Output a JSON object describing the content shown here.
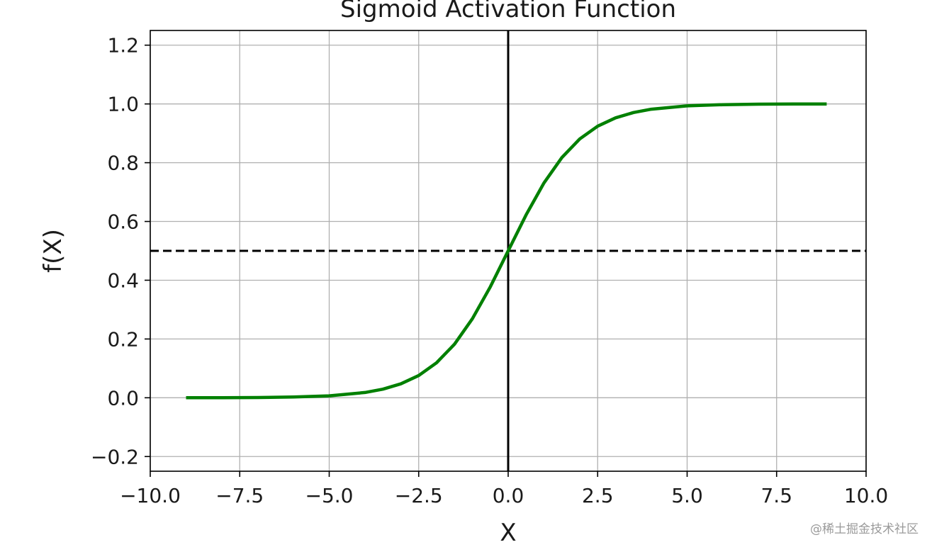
{
  "chart_data": {
    "type": "line",
    "title": "Sigmoid Activation Function",
    "xlabel": "X",
    "ylabel": "f(X)",
    "xlim": [
      -10.0,
      10.0
    ],
    "ylim": [
      -0.25,
      1.25
    ],
    "xticks": [
      -10.0,
      -7.5,
      -5.0,
      -2.5,
      0.0,
      2.5,
      5.0,
      7.5,
      10.0
    ],
    "xtick_labels": [
      "−10.0",
      "−7.5",
      "−5.0",
      "−2.5",
      "0.0",
      "2.5",
      "5.0",
      "7.5",
      "10.0"
    ],
    "yticks": [
      -0.2,
      0.0,
      0.2,
      0.4,
      0.6,
      0.8,
      1.0,
      1.2
    ],
    "ytick_labels": [
      "−0.2",
      "0.0",
      "0.2",
      "0.4",
      "0.6",
      "0.8",
      "1.0",
      "1.2"
    ],
    "grid": true,
    "series": [
      {
        "color": "#008000",
        "x": [
          -9.0,
          -8.0,
          -7.0,
          -6.0,
          -5.0,
          -4.0,
          -3.5,
          -3.0,
          -2.5,
          -2.0,
          -1.5,
          -1.0,
          -0.5,
          0.0,
          0.5,
          1.0,
          1.5,
          2.0,
          2.5,
          3.0,
          3.5,
          4.0,
          5.0,
          6.0,
          7.0,
          8.0,
          8.9
        ],
        "y": [
          0.0001,
          0.0003,
          0.0009,
          0.0025,
          0.0067,
          0.018,
          0.0293,
          0.0474,
          0.0759,
          0.1192,
          0.1824,
          0.2689,
          0.3775,
          0.5,
          0.6225,
          0.7311,
          0.8176,
          0.8808,
          0.9241,
          0.9526,
          0.9707,
          0.982,
          0.9933,
          0.9975,
          0.9991,
          0.9997,
          0.9999
        ]
      }
    ],
    "reference_lines": [
      {
        "orientation": "horizontal",
        "value": 0.5,
        "style": "dashed",
        "color": "#000000"
      },
      {
        "orientation": "vertical",
        "value": 0.0,
        "style": "solid",
        "color": "#000000"
      }
    ]
  },
  "watermark": "@稀土掘金技术社区"
}
